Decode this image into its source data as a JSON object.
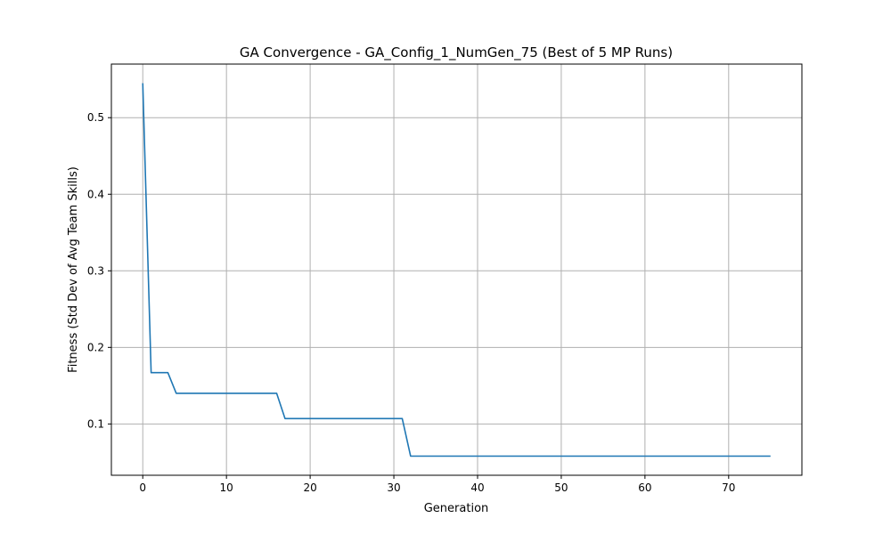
{
  "chart_data": {
    "type": "line",
    "title": "GA Convergence - GA_Config_1_NumGen_75 (Best of 5 MP Runs)",
    "xlabel": "Generation",
    "ylabel": "Fitness (Std Dev of Avg Team Skills)",
    "xlim": [
      -3.75,
      78.75
    ],
    "ylim": [
      0.033,
      0.57
    ],
    "x_ticks": [
      0,
      10,
      20,
      30,
      40,
      50,
      60,
      70
    ],
    "y_ticks": [
      0.1,
      0.2,
      0.3,
      0.4,
      0.5
    ],
    "x_tick_labels": [
      "0",
      "10",
      "20",
      "30",
      "40",
      "50",
      "60",
      "70"
    ],
    "y_tick_labels": [
      "0.1",
      "0.2",
      "0.3",
      "0.4",
      "0.5"
    ],
    "grid": true,
    "line_color": "#1f77b4",
    "grid_color": "#b0b0b0",
    "series": [
      {
        "x": [
          0,
          1,
          2,
          3,
          4,
          5,
          6,
          7,
          8,
          9,
          10,
          11,
          12,
          13,
          14,
          15,
          16,
          17,
          18,
          19,
          20,
          21,
          22,
          23,
          24,
          25,
          26,
          27,
          28,
          29,
          30,
          31,
          32,
          33,
          34,
          35,
          36,
          37,
          38,
          39,
          40,
          41,
          42,
          43,
          44,
          45,
          46,
          47,
          48,
          49,
          50,
          51,
          52,
          53,
          54,
          55,
          56,
          57,
          58,
          59,
          60,
          61,
          62,
          63,
          64,
          65,
          66,
          67,
          68,
          69,
          70,
          71,
          72,
          73,
          74,
          75
        ],
        "y": [
          0.545,
          0.167,
          0.167,
          0.167,
          0.14,
          0.14,
          0.14,
          0.14,
          0.14,
          0.14,
          0.14,
          0.14,
          0.14,
          0.14,
          0.14,
          0.14,
          0.14,
          0.107,
          0.107,
          0.107,
          0.107,
          0.107,
          0.107,
          0.107,
          0.107,
          0.107,
          0.107,
          0.107,
          0.107,
          0.107,
          0.107,
          0.107,
          0.058,
          0.058,
          0.058,
          0.058,
          0.058,
          0.058,
          0.058,
          0.058,
          0.058,
          0.058,
          0.058,
          0.058,
          0.058,
          0.058,
          0.058,
          0.058,
          0.058,
          0.058,
          0.058,
          0.058,
          0.058,
          0.058,
          0.058,
          0.058,
          0.058,
          0.058,
          0.058,
          0.058,
          0.058,
          0.058,
          0.058,
          0.058,
          0.058,
          0.058,
          0.058,
          0.058,
          0.058,
          0.058,
          0.058,
          0.058,
          0.058,
          0.058,
          0.058,
          0.058
        ]
      }
    ]
  }
}
